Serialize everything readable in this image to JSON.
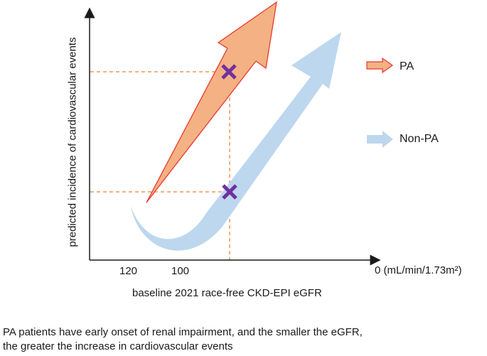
{
  "axes": {
    "y_title": "predicted incidence of cardiovascular events",
    "x_title": "baseline 2021 race-free CKD-EPI eGFR",
    "x_ticks": {
      "t120": "120",
      "t100": "100",
      "t0": "0 (mL/min/1.73m²)"
    }
  },
  "legend": {
    "pa": {
      "label": "PA",
      "fill": "#f4b183",
      "stroke": "#e8382e"
    },
    "non_pa": {
      "label": "Non-PA",
      "fill": "#bdd7ee"
    }
  },
  "markers": {
    "color": "#7030a0",
    "guide_color": "#ed7d31"
  },
  "caption": {
    "line1": "PA patients have early onset of renal impairment, and the smaller the eGFR,",
    "line2": "the greater the increase in cardiovascular events"
  }
}
